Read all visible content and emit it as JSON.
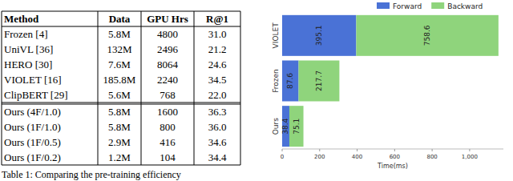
{
  "table": {
    "header": [
      "Method",
      "Data",
      "GPU Hrs",
      "R@1"
    ],
    "groups": [
      [
        [
          "Frozen [4]",
          "5.8M",
          "4800",
          "31.0"
        ],
        [
          "UniVL [36]",
          "132M",
          "2496",
          "21.2"
        ],
        [
          "HERO [30]",
          "7.6M",
          "8064",
          "24.6"
        ],
        [
          "VIOLET [16]",
          "185.8M",
          "2240",
          "34.5"
        ],
        [
          "ClipBERT [29]",
          "5.6M",
          "768",
          "22.0"
        ]
      ],
      [
        [
          "Ours (4F/1.0)",
          "5.8M",
          "1600",
          "36.3"
        ],
        [
          "Ours (1F/1.0)",
          "5.8M",
          "800",
          "36.0"
        ],
        [
          "Ours (1F/0.5)",
          "2.9M",
          "416",
          "34.6"
        ],
        [
          "Ours (1F/0.2)",
          "1.2M",
          "104",
          "34.4"
        ]
      ]
    ]
  },
  "caption": "Table 1: Comparing the pre-training efficiency",
  "chart_data": {
    "type": "bar",
    "orientation": "horizontal",
    "stacked": true,
    "data_labels": true,
    "legend": "top",
    "grid": false,
    "categories": [
      "VIOLET",
      "Frozen",
      "Ours"
    ],
    "series": [
      {
        "name": "Forward",
        "color": "#4a72d6",
        "values": [
          395.1,
          87.6,
          38.4
        ]
      },
      {
        "name": "Backward",
        "color": "#8fd47c",
        "values": [
          758.6,
          217.7,
          75.1
        ]
      }
    ],
    "xlim": [
      0,
      1180
    ],
    "xticks": [
      0,
      200,
      400,
      600,
      800,
      {
        "value": 1000,
        "label": "1,000"
      }
    ],
    "x_label": "Time(ms)"
  }
}
